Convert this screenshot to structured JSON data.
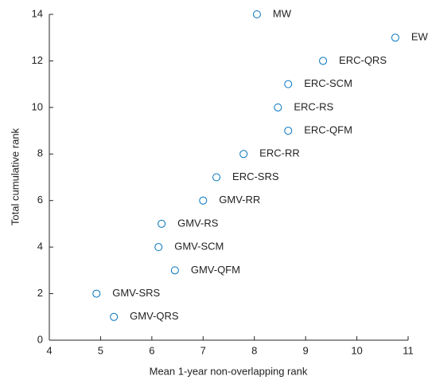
{
  "chart_data": {
    "type": "scatter",
    "xlabel": "Mean 1-year non-overlapping rank",
    "ylabel": "Total cumulative rank",
    "labels": [
      "MW",
      "EW",
      "ERC-QRS",
      "ERC-SCM",
      "ERC-RS",
      "ERC-QFM",
      "ERC-RR",
      "ERC-SRS",
      "GMV-RR",
      "GMV-RS",
      "GMV-SCM",
      "GMV-QFM",
      "GMV-SRS",
      "GMV-QRS"
    ],
    "x": [
      8.05,
      10.75,
      9.34,
      8.66,
      8.46,
      8.66,
      7.79,
      7.26,
      7.0,
      6.19,
      6.13,
      6.45,
      4.92,
      5.26
    ],
    "values": [
      14,
      13,
      12,
      11,
      10,
      9,
      8,
      7,
      6,
      5,
      4,
      3,
      2,
      1
    ],
    "color": "#0072bd",
    "xlim": [
      4,
      11
    ],
    "xticks": [
      4,
      5,
      6,
      7,
      8,
      9,
      10,
      11
    ],
    "ylim": [
      0,
      14
    ],
    "yticks": [
      0,
      2,
      4,
      6,
      8,
      10,
      12,
      14
    ]
  }
}
